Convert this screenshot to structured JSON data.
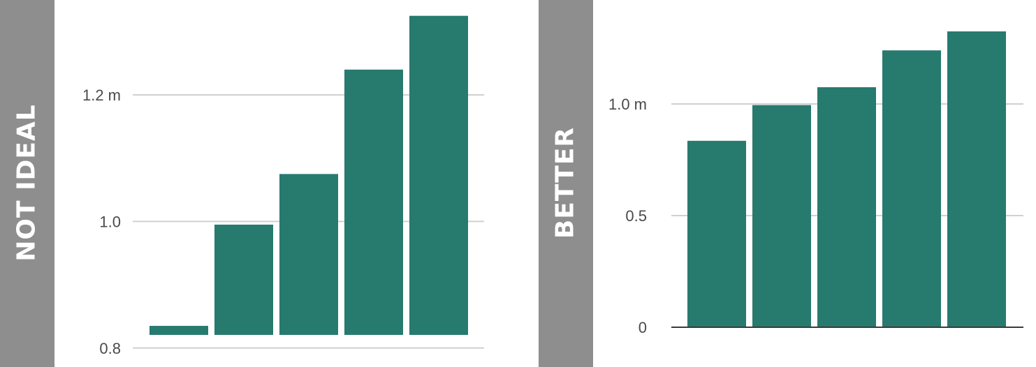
{
  "panels": {
    "left_label": "NOT IDEAL",
    "right_label": "BETTER"
  },
  "colors": {
    "bar": "#277a6e",
    "label_background": "#8e8e8e",
    "gridline": "#d0d0d0",
    "baseline": "#3a3a3a"
  },
  "chart_data": [
    {
      "type": "bar",
      "title": "",
      "xlabel": "",
      "ylabel": "",
      "values": [
        0.835,
        0.995,
        1.075,
        1.24,
        1.325
      ],
      "ylim": [
        0.77,
        1.35
      ],
      "yticks": [
        0.8,
        1.0,
        1.2
      ],
      "ytick_labels": [
        "0.8",
        "1.0",
        "1.2 m"
      ],
      "grid": true,
      "baseline_visible": false
    },
    {
      "type": "bar",
      "title": "",
      "xlabel": "",
      "ylabel": "",
      "values": [
        0.835,
        0.995,
        1.075,
        1.24,
        1.325
      ],
      "ylim": [
        0,
        1.5
      ],
      "yticks": [
        0,
        0.5,
        1.0
      ],
      "ytick_labels": [
        "0",
        "0.5",
        "1.0 m"
      ],
      "grid": true,
      "baseline_visible": true
    }
  ]
}
